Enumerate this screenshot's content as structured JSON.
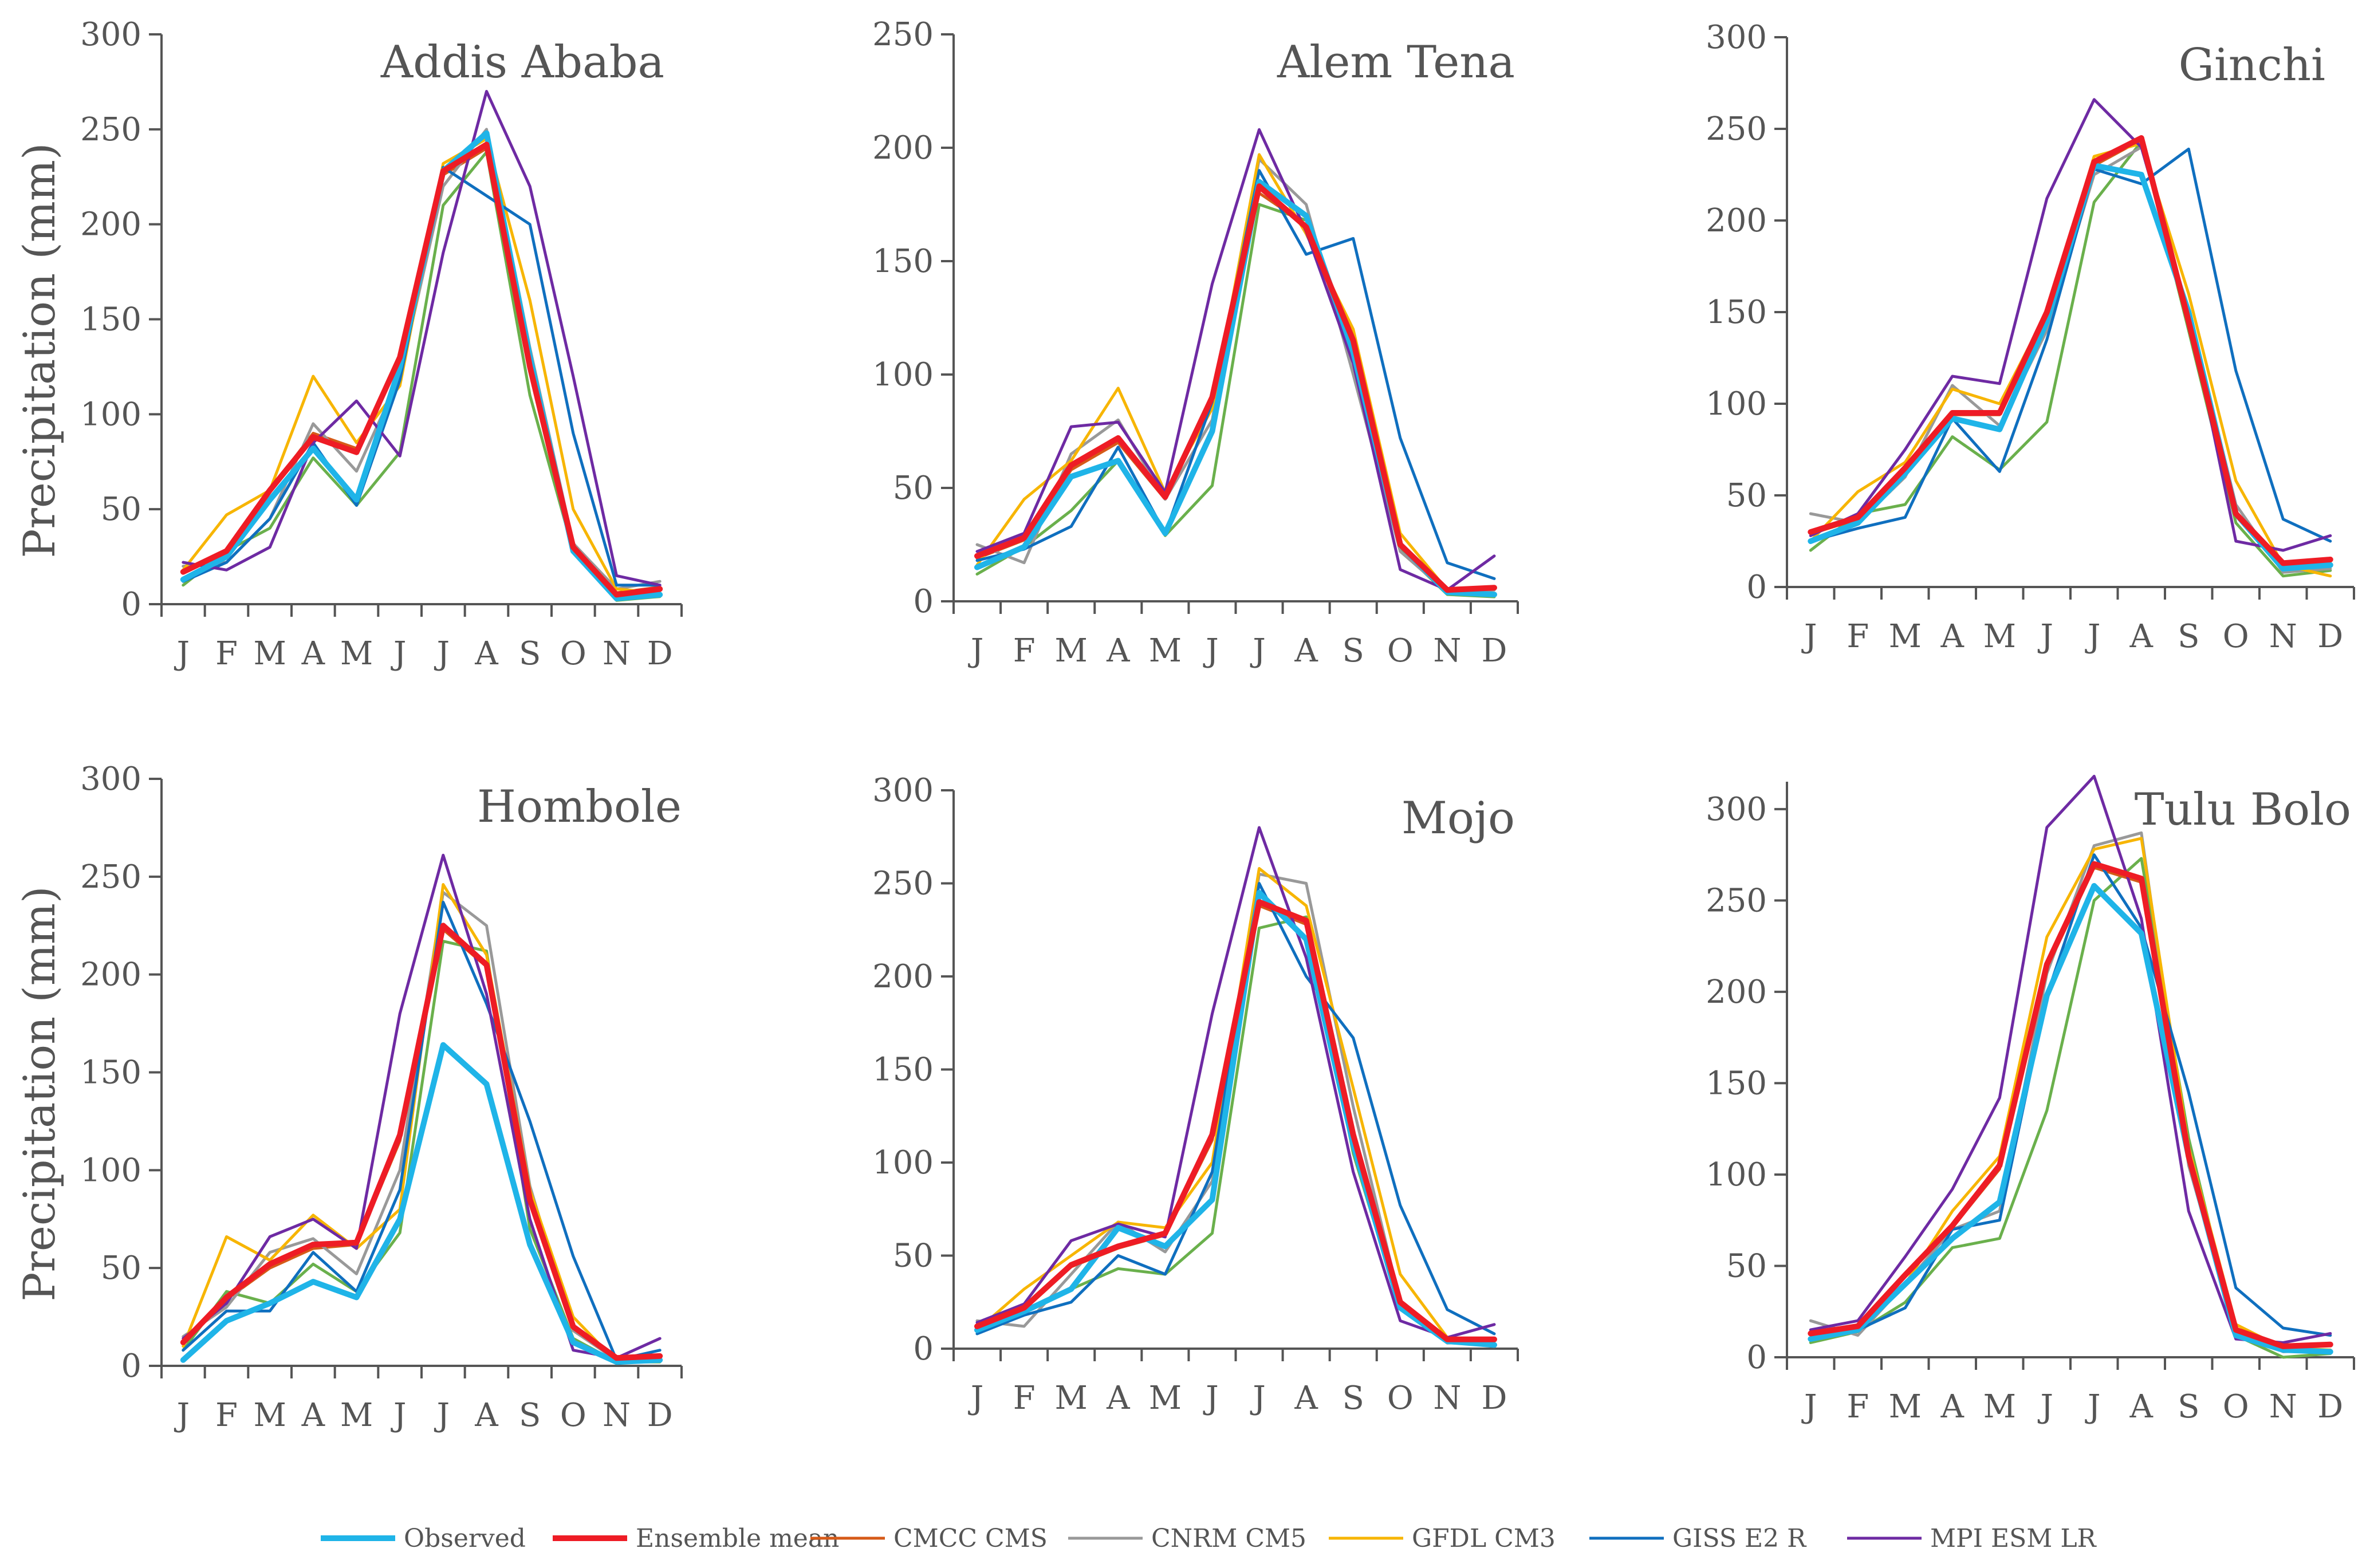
{
  "chart_data": {
    "type": "line",
    "ylabel": "Precipitation (mm)",
    "months": [
      "J",
      "F",
      "M",
      "A",
      "M",
      "J",
      "J",
      "A",
      "S",
      "O",
      "N",
      "D"
    ],
    "legend": [
      {
        "name": "Observed",
        "color": "#1fb4e8",
        "width": 10
      },
      {
        "name": "Ensemble mean",
        "color": "#ee1c25",
        "width": 10
      },
      {
        "name": "CMCC CMS",
        "color": "#d65a18",
        "width": 5
      },
      {
        "name": "CNRM CM5",
        "color": "#999999",
        "width": 5
      },
      {
        "name": "GFDL CM3",
        "color": "#f7b500",
        "width": 5
      },
      {
        "name": "GISS E2 R",
        "color": "#0f6fbf",
        "width": 5
      },
      {
        "name": "MPI ESM LR",
        "color": "#6e2aa3",
        "width": 5
      },
      {
        "name": "",
        "color": "#6ab04c",
        "width": 5
      }
    ],
    "panels": [
      {
        "title": "Addis Ababa",
        "ylim": [
          0,
          300
        ],
        "yticks": [
          0,
          50,
          100,
          150,
          200,
          250,
          300
        ],
        "series": [
          {
            "name": "Observed",
            "values": [
              13,
              25,
              55,
              82,
              55,
              125,
              228,
              248,
              130,
              28,
              3,
              5
            ]
          },
          {
            "name": "Ensemble mean",
            "values": [
              17,
              28,
              60,
              88,
              80,
              130,
              228,
              242,
              125,
              30,
              5,
              8
            ]
          },
          {
            "name": "CMCC CMS",
            "values": [
              18,
              28,
              60,
              90,
              82,
              128,
              226,
              240,
              128,
              30,
              6,
              9
            ]
          },
          {
            "name": "CNRM CM5",
            "values": [
              20,
              22,
              45,
              95,
              70,
              120,
              220,
              250,
              135,
              32,
              8,
              12
            ]
          },
          {
            "name": "GFDL CM3",
            "values": [
              18,
              47,
              60,
              120,
              85,
              115,
              232,
              245,
              160,
              50,
              8,
              6
            ]
          },
          {
            "name": "GISS E2 R",
            "values": [
              12,
              22,
              45,
              85,
              52,
              118,
              230,
              215,
              200,
              90,
              10,
              10
            ]
          },
          {
            "name": "MPI ESM LR",
            "values": [
              22,
              18,
              30,
              85,
              107,
              78,
              185,
              270,
              220,
              120,
              15,
              10
            ]
          },
          {
            "name": "",
            "values": [
              10,
              28,
              40,
              77,
              52,
              80,
              210,
              238,
              110,
              28,
              2,
              4
            ]
          }
        ]
      },
      {
        "title": "Alem Tena",
        "ylim": [
          0,
          250
        ],
        "yticks": [
          0,
          50,
          100,
          150,
          200,
          250
        ],
        "series": [
          {
            "name": "Observed",
            "values": [
              15,
              24,
              55,
              62,
              30,
              75,
              185,
              170,
              110,
              25,
              4,
              3
            ]
          },
          {
            "name": "Ensemble mean",
            "values": [
              20,
              28,
              60,
              72,
              46,
              90,
              183,
              165,
              115,
              25,
              5,
              6
            ]
          },
          {
            "name": "CMCC CMS",
            "values": [
              19,
              27,
              58,
              70,
              45,
              88,
              180,
              166,
              112,
              24,
              5,
              6
            ]
          },
          {
            "name": "CNRM CM5",
            "values": [
              25,
              17,
              65,
              80,
              45,
              80,
              195,
              175,
              100,
              22,
              4,
              5
            ]
          },
          {
            "name": "GFDL CM3",
            "values": [
              16,
              45,
              62,
              94,
              48,
              85,
              197,
              162,
              120,
              30,
              5,
              3
            ]
          },
          {
            "name": "GISS E2 R",
            "values": [
              18,
              23,
              33,
              68,
              30,
              88,
              190,
              153,
              160,
              72,
              17,
              10
            ]
          },
          {
            "name": "MPI ESM LR",
            "values": [
              22,
              30,
              77,
              79,
              48,
              140,
              208,
              163,
              105,
              14,
              5,
              20
            ]
          },
          {
            "name": "",
            "values": [
              12,
              24,
              40,
              62,
              29,
              51,
              175,
              168,
              115,
              23,
              3,
              2
            ]
          }
        ]
      },
      {
        "title": "Ginchi",
        "ylim": [
          0,
          300
        ],
        "yticks": [
          0,
          50,
          100,
          150,
          200,
          250,
          300
        ],
        "series": [
          {
            "name": "Observed",
            "values": [
              25,
              35,
              62,
              92,
              86,
              145,
              230,
              225,
              150,
              40,
              10,
              12
            ]
          },
          {
            "name": "Ensemble mean",
            "values": [
              30,
              38,
              65,
              95,
              95,
              150,
              232,
              245,
              145,
              40,
              13,
              15
            ]
          },
          {
            "name": "CMCC CMS",
            "values": [
              29,
              37,
              64,
              94,
              94,
              148,
              230,
              244,
              148,
              41,
              12,
              14
            ]
          },
          {
            "name": "CNRM CM5",
            "values": [
              40,
              35,
              60,
              110,
              88,
              140,
              225,
              240,
              150,
              45,
              8,
              10
            ]
          },
          {
            "name": "GFDL CM3",
            "values": [
              25,
              52,
              68,
              108,
              100,
              150,
              235,
              242,
              160,
              58,
              12,
              6
            ]
          },
          {
            "name": "GISS E2 R",
            "values": [
              25,
              32,
              38,
              92,
              63,
              135,
              228,
              220,
              239,
              118,
              37,
              25
            ]
          },
          {
            "name": "MPI ESM LR",
            "values": [
              28,
              40,
              75,
              115,
              111,
              212,
              266,
              240,
              150,
              25,
              20,
              28
            ]
          },
          {
            "name": "",
            "values": [
              20,
              40,
              45,
              82,
              64,
              90,
              210,
              243,
              140,
              35,
              6,
              9
            ]
          }
        ]
      },
      {
        "title": "Hombole",
        "ylim": [
          0,
          300
        ],
        "yticks": [
          0,
          50,
          100,
          150,
          200,
          250,
          300
        ],
        "series": [
          {
            "name": "Observed",
            "values": [
              3,
              23,
              32,
              43,
              35,
              75,
              164,
              144,
              62,
              12,
              2,
              3
            ]
          },
          {
            "name": "Ensemble mean",
            "values": [
              12,
              35,
              52,
              62,
              63,
              118,
              225,
              205,
              85,
              20,
              4,
              5
            ]
          },
          {
            "name": "CMCC CMS",
            "values": [
              11,
              34,
              50,
              60,
              62,
              115,
              223,
              204,
              84,
              19,
              4,
              5
            ]
          },
          {
            "name": "CNRM CM5",
            "values": [
              15,
              30,
              58,
              65,
              47,
              100,
              242,
              225,
              92,
              18,
              3,
              5
            ]
          },
          {
            "name": "GFDL CM3",
            "values": [
              10,
              66,
              54,
              77,
              60,
              80,
              246,
              210,
              90,
              25,
              2,
              3
            ]
          },
          {
            "name": "GISS E2 R",
            "values": [
              8,
              28,
              28,
              58,
              38,
              90,
              237,
              185,
              125,
              56,
              3,
              8
            ]
          },
          {
            "name": "MPI ESM LR",
            "values": [
              14,
              32,
              66,
              75,
              60,
              180,
              261,
              190,
              75,
              8,
              4,
              14
            ]
          },
          {
            "name": "",
            "values": [
              8,
              38,
              32,
              52,
              38,
              68,
              217,
              212,
              70,
              14,
              2,
              2
            ]
          }
        ]
      },
      {
        "title": "Mojo",
        "ylim": [
          0,
          300
        ],
        "yticks": [
          0,
          50,
          100,
          150,
          200,
          250,
          300
        ],
        "series": [
          {
            "name": "Observed",
            "values": [
              10,
              20,
              32,
              65,
              55,
              80,
              245,
              220,
              110,
              22,
              4,
              2
            ]
          },
          {
            "name": "Ensemble mean",
            "values": [
              12,
              22,
              45,
              55,
              62,
              115,
              240,
              230,
              115,
              25,
              5,
              5
            ]
          },
          {
            "name": "CMCC CMS",
            "values": [
              12,
              21,
              44,
              54,
              61,
              112,
              238,
              228,
              116,
              25,
              5,
              5
            ]
          },
          {
            "name": "CNRM CM5",
            "values": [
              15,
              12,
              40,
              68,
              52,
              90,
              255,
              250,
              130,
              25,
              3,
              4
            ]
          },
          {
            "name": "GFDL CM3",
            "values": [
              10,
              32,
              50,
              68,
              65,
              100,
              258,
              238,
              140,
              40,
              6,
              3
            ]
          },
          {
            "name": "GISS E2 R",
            "values": [
              8,
              18,
              25,
              50,
              40,
              95,
              250,
              200,
              167,
              77,
              21,
              8
            ]
          },
          {
            "name": "MPI ESM LR",
            "values": [
              14,
              24,
              58,
              67,
              60,
              180,
              280,
              210,
              95,
              15,
              6,
              13
            ]
          },
          {
            "name": "",
            "values": [
              8,
              20,
              32,
              43,
              40,
              62,
              226,
              232,
              105,
              22,
              5,
              2
            ]
          }
        ]
      },
      {
        "title": "Tulu Bolo",
        "ylim": [
          0,
          315
        ],
        "yticks": [
          0,
          50,
          100,
          150,
          200,
          250,
          300
        ],
        "series": [
          {
            "name": "Observed",
            "values": [
              10,
              15,
              40,
              65,
              85,
              198,
              258,
              232,
              110,
              12,
              4,
              3
            ]
          },
          {
            "name": "Ensemble mean",
            "values": [
              13,
              17,
              45,
              72,
              105,
              215,
              270,
              262,
              110,
              15,
              6,
              7
            ]
          },
          {
            "name": "CMCC CMS",
            "values": [
              13,
              17,
              44,
              71,
              103,
              213,
              268,
              260,
              112,
              15,
              6,
              7
            ]
          },
          {
            "name": "CNRM CM5",
            "values": [
              20,
              12,
              40,
              70,
              80,
              210,
              280,
              287,
              105,
              15,
              3,
              4
            ]
          },
          {
            "name": "GFDL CM3",
            "values": [
              10,
              16,
              40,
              80,
              110,
              230,
              278,
              284,
              115,
              18,
              5,
              4
            ]
          },
          {
            "name": "GISS E2 R",
            "values": [
              10,
              15,
              27,
              70,
              75,
              198,
              275,
              235,
              145,
              38,
              16,
              12
            ]
          },
          {
            "name": "MPI ESM LR",
            "values": [
              15,
              20,
              55,
              92,
              142,
              290,
              318,
              240,
              80,
              10,
              8,
              13
            ]
          },
          {
            "name": "",
            "values": [
              8,
              14,
              30,
              60,
              65,
              135,
              250,
              273,
              120,
              12,
              0,
              2
            ]
          }
        ]
      }
    ]
  }
}
